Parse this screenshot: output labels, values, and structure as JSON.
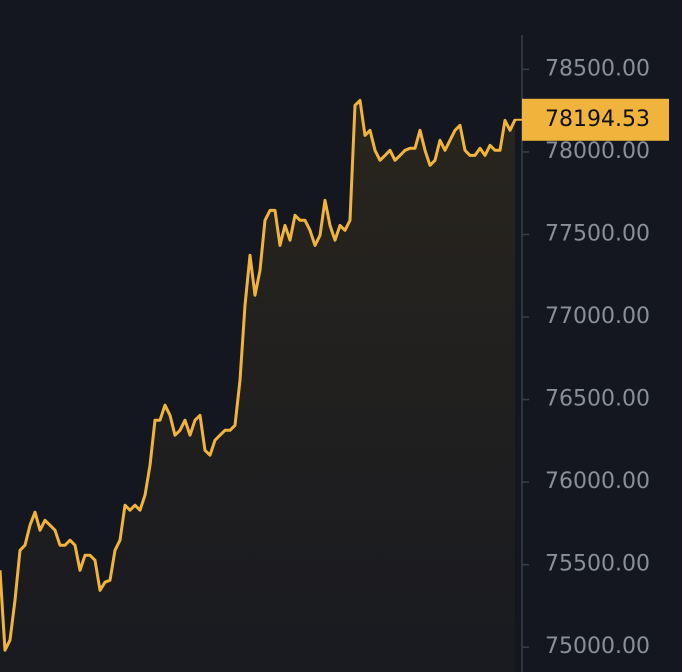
{
  "chart_data": {
    "type": "line",
    "series": [
      {
        "color": "#f0b43c",
        "values": [
          75466,
          74982,
          75043,
          75285,
          75587,
          75618,
          75739,
          75818,
          75709,
          75769,
          75739,
          75709,
          75618,
          75618,
          75648,
          75618,
          75466,
          75557,
          75557,
          75527,
          75345,
          75394,
          75406,
          75587,
          75648,
          75860,
          75830,
          75860,
          75830,
          75921,
          76102,
          76375,
          76375,
          76466,
          76405,
          76284,
          76314,
          76375,
          76284,
          76375,
          76405,
          76193,
          76163,
          76254,
          76284,
          76314,
          76314,
          76344,
          76617,
          77071,
          77374,
          77132,
          77283,
          77586,
          77646,
          77646,
          77434,
          77555,
          77465,
          77616,
          77586,
          77586,
          77525,
          77434,
          77495,
          77707,
          77555,
          77465,
          77555,
          77525,
          77586,
          78282,
          78312,
          78100,
          78131,
          78010,
          77949,
          77979,
          78010,
          77949,
          77979,
          78010,
          78022,
          78022,
          78131,
          78010,
          77919,
          77949,
          78070,
          78010,
          78070,
          78131,
          78161,
          78010,
          77979,
          77979,
          78022,
          77979,
          78040,
          78010,
          78010,
          78191,
          78131,
          78194.53
        ]
      }
    ],
    "last_price": 78194.53,
    "ylim": [
      74850,
      78920
    ],
    "yticks": [
      {
        "value": 75000,
        "label": "75000.00"
      },
      {
        "value": 75500,
        "label": "75500.00"
      },
      {
        "value": 76000,
        "label": "76000.00"
      },
      {
        "value": 76500,
        "label": "76500.00"
      },
      {
        "value": 77000,
        "label": "77000.00"
      },
      {
        "value": 77500,
        "label": "77500.00"
      },
      {
        "value": 78000,
        "label": "78000.00"
      },
      {
        "value": 78500,
        "label": "78500.00"
      }
    ]
  }
}
